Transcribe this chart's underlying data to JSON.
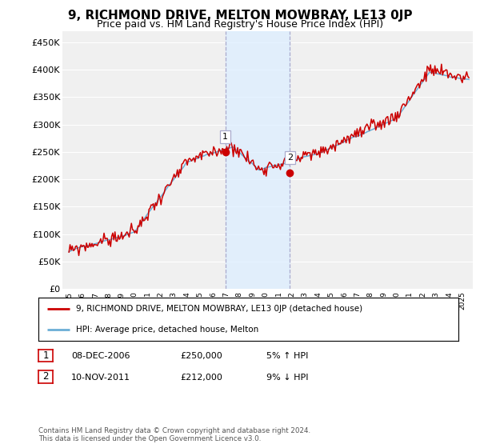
{
  "title": "9, RICHMOND DRIVE, MELTON MOWBRAY, LE13 0JP",
  "subtitle": "Price paid vs. HM Land Registry's House Price Index (HPI)",
  "legend_line1": "9, RICHMOND DRIVE, MELTON MOWBRAY, LE13 0JP (detached house)",
  "legend_line2": "HPI: Average price, detached house, Melton",
  "transaction1_date": "08-DEC-2006",
  "transaction1_price": "£250,000",
  "transaction1_hpi": "5% ↑ HPI",
  "transaction2_date": "10-NOV-2011",
  "transaction2_price": "£212,000",
  "transaction2_hpi": "9% ↓ HPI",
  "footer": "Contains HM Land Registry data © Crown copyright and database right 2024.\nThis data is licensed under the Open Government Licence v3.0.",
  "hpi_color": "#6baed6",
  "price_color": "#cc0000",
  "shaded_color": "#ddeeff",
  "ylim": [
    0,
    470000
  ],
  "yticks": [
    0,
    50000,
    100000,
    150000,
    200000,
    250000,
    300000,
    350000,
    400000,
    450000
  ],
  "x_start_year": 1995,
  "x_end_year": 2025,
  "transaction1_year": 2006.92,
  "transaction2_year": 2011.85,
  "t1_price_val": 250000,
  "t2_price_val": 212000,
  "background_color": "#ffffff",
  "plot_bg_color": "#f0f0f0"
}
